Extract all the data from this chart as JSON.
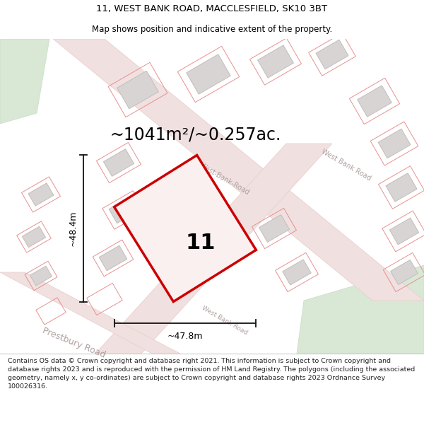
{
  "title_line1": "11, WEST BANK ROAD, MACCLESFIELD, SK10 3BT",
  "title_line2": "Map shows position and indicative extent of the property.",
  "area_text": "~1041m²/~0.257ac.",
  "width_label": "~47.8m",
  "height_label": "~48.4m",
  "number_label": "11",
  "footer_text": "Contains OS data © Crown copyright and database right 2021. This information is subject to Crown copyright and database rights 2023 and is reproduced with the permission of HM Land Registry. The polygons (including the associated geometry, namely x, y co-ordinates) are subject to Crown copyright and database rights 2023 Ordnance Survey 100026316.",
  "map_bg": "#f8f5f5",
  "road_fill": "#f0e0e0",
  "road_edge": "#e8cccc",
  "building_fill": "#d8d4d4",
  "building_edge": "#c4bebe",
  "boundary_color": "#e89090",
  "green_fill": "#d8e8d5",
  "green_edge": "#c8dcc5",
  "highlight_color": "#cc0000",
  "highlight_fill": "#faf0f0",
  "footer_bg": "#ffffff",
  "text_color": "#000000",
  "road_label_color": "#b0a0a0",
  "dim_color": "#111111",
  "title1_fontsize": 9.5,
  "title2_fontsize": 8.5,
  "area_fontsize": 17,
  "number_fontsize": 22,
  "dim_fontsize": 9,
  "road_label_fontsize": 7,
  "footer_fontsize": 6.8
}
